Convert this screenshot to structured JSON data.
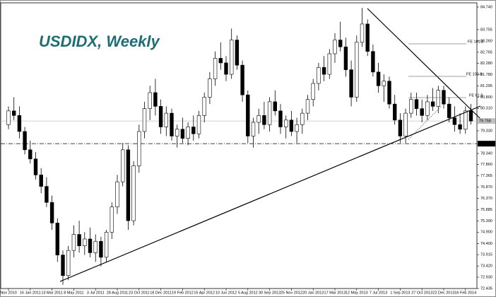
{
  "chart_data": {
    "type": "candlestick",
    "title": "USDIDX, Weekly",
    "categories": [
      "Nov 2010",
      null,
      null,
      null,
      "16 Jan 2011",
      null,
      null,
      null,
      "13 Mar 2011",
      null,
      null,
      null,
      "8 May 2011",
      null,
      null,
      null,
      "3 Jul 2011",
      null,
      null,
      null,
      "28 Aug 2011",
      null,
      null,
      null,
      "23 Oct 2011",
      null,
      null,
      null,
      "18 Dec 2011",
      null,
      null,
      null,
      "19 Feb 2012",
      null,
      null,
      null,
      "15 Apr 2012",
      null,
      null,
      null,
      "10 Jun 2012",
      null,
      null,
      null,
      "5 Aug 2012",
      null,
      null,
      null,
      "30 Sep 2012",
      null,
      null,
      null,
      "25 Nov 2012",
      null,
      null,
      null,
      "20 Jan 2013",
      null,
      null,
      null,
      "17 Mar 2013",
      null,
      null,
      null,
      "12 May 2013",
      null,
      null,
      null,
      "7 Jul 2013",
      null,
      null,
      null,
      "1 Sep 2013",
      null,
      null,
      null,
      "27 Oct 2013",
      null,
      null,
      null,
      "22 Dec 2013",
      null,
      null,
      null,
      "16 Feb 2014",
      null
    ],
    "open": [
      79.6,
      80.2,
      80.0,
      79.3,
      78.5,
      78.1,
      77.4,
      76.9,
      76.2,
      75.3,
      73.9,
      73.0,
      74.1,
      74.8,
      74.3,
      74.6,
      74.0,
      74.5,
      73.8,
      74.9,
      76.0,
      77.1,
      78.5,
      75.4,
      77.8,
      79.3,
      80.3,
      81.0,
      80.4,
      79.5,
      80.1,
      79.1,
      79.4,
      79.0,
      79.5,
      79.2,
      80.0,
      80.8,
      81.6,
      82.5,
      82.3,
      81.8,
      83.3,
      82.2,
      80.9,
      79.1,
      79.7,
      80.0,
      79.6,
      80.6,
      80.2,
      79.5,
      79.8,
      79.3,
      79.6,
      80.1,
      80.7,
      81.4,
      82.1,
      81.8,
      82.7,
      83.3,
      83.0,
      82.0,
      80.8,
      83.2,
      84.0,
      82.8,
      81.9,
      81.3,
      81.5,
      80.5,
      79.8,
      79.1,
      80.1,
      80.7,
      80.3,
      80.0,
      80.6,
      80.4,
      81.1,
      80.5,
      79.9,
      79.6,
      79.4,
      80.2
    ],
    "high": [
      80.4,
      80.8,
      80.4,
      79.5,
      78.9,
      78.4,
      77.7,
      77.3,
      76.5,
      75.5,
      74.1,
      74.3,
      75.2,
      75.4,
      74.9,
      75.1,
      74.8,
      74.7,
      75.0,
      76.2,
      77.4,
      78.8,
      78.7,
      78.0,
      79.6,
      80.6,
      81.3,
      81.6,
      80.7,
      80.4,
      80.3,
      79.6,
      79.9,
      79.7,
      80.0,
      80.2,
      81.0,
      81.9,
      82.8,
      83.2,
      82.6,
      83.8,
      83.5,
      82.4,
      81.1,
      79.9,
      80.3,
      80.6,
      80.8,
      81.1,
      80.5,
      80.0,
      80.2,
      79.9,
      80.3,
      80.9,
      81.6,
      82.3,
      82.6,
      82.9,
      83.6,
      84.1,
      83.4,
      82.4,
      83.5,
      84.7,
      84.2,
      83.1,
      82.3,
      81.8,
      81.7,
      80.9,
      80.1,
      80.3,
      81.0,
      81.0,
      80.7,
      80.9,
      81.2,
      81.3,
      81.3,
      80.8,
      80.4,
      80.1,
      80.4,
      80.5
    ],
    "low": [
      79.4,
      79.8,
      79.0,
      78.3,
      77.9,
      77.2,
      76.6,
      76.0,
      75.0,
      73.6,
      72.6,
      72.8,
      73.8,
      74.0,
      73.9,
      73.8,
      73.6,
      73.4,
      73.6,
      74.6,
      75.7,
      76.9,
      75.0,
      75.2,
      77.5,
      79.0,
      79.8,
      80.0,
      79.2,
      79.1,
      78.9,
      78.6,
      78.8,
      78.7,
      78.9,
      79.0,
      79.7,
      80.5,
      81.3,
      82.0,
      81.5,
      81.6,
      82.0,
      80.6,
      78.8,
      78.6,
      79.2,
      79.4,
      79.3,
      80.0,
      79.2,
      79.0,
      79.1,
      78.8,
      79.2,
      79.8,
      80.4,
      81.1,
      81.5,
      81.6,
      82.3,
      82.8,
      81.7,
      80.4,
      80.6,
      83.0,
      82.6,
      81.7,
      81.0,
      80.6,
      80.3,
      79.6,
      78.8,
      78.8,
      79.9,
      80.0,
      79.7,
      79.8,
      80.2,
      80.1,
      80.3,
      79.7,
      79.3,
      79.2,
      79.2,
      79.6
    ],
    "close": [
      80.2,
      80.0,
      79.3,
      78.5,
      78.1,
      77.4,
      76.9,
      76.2,
      75.3,
      73.9,
      73.0,
      74.1,
      74.8,
      74.3,
      74.6,
      74.0,
      74.5,
      73.8,
      74.9,
      76.0,
      77.1,
      78.5,
      75.4,
      77.8,
      79.3,
      80.3,
      81.0,
      80.4,
      79.5,
      80.1,
      79.1,
      79.4,
      79.0,
      79.5,
      79.2,
      80.0,
      80.8,
      81.6,
      82.5,
      82.3,
      81.8,
      83.3,
      82.2,
      80.9,
      79.1,
      79.7,
      80.0,
      79.6,
      80.6,
      80.2,
      79.5,
      79.8,
      79.3,
      79.6,
      80.1,
      80.7,
      81.4,
      82.1,
      81.8,
      82.7,
      83.3,
      83.0,
      82.0,
      80.8,
      83.2,
      84.0,
      82.8,
      81.9,
      81.3,
      81.5,
      80.5,
      79.8,
      79.1,
      80.1,
      80.7,
      80.3,
      80.0,
      80.6,
      80.4,
      81.1,
      80.5,
      79.9,
      79.6,
      79.4,
      80.2,
      79.758
    ],
    "up_color": "#ffffff",
    "down_color": "#000000",
    "ylim": [
      72.435,
      84.74
    ],
    "yticks": [
      {
        "value": 84.74,
        "label": "84.740"
      },
      83.755,
      {
        "value": 83.26,
        "label": "83.260"
      },
      82.765,
      {
        "value": 82.28,
        "label": "82.280"
      },
      {
        "value": 81.78,
        "label": "81.780"
      },
      81.295,
      {
        "value": 80.8,
        "label": "80.800"
      },
      {
        "value": 80.31,
        "label": "80.310"
      },
      {
        "value": 79.33,
        "label": "79.330"
      },
      {
        "value": 78.34,
        "label": "78.340"
      },
      {
        "value": 77.86,
        "label": "77.860"
      },
      77.365,
      {
        "value": 76.87,
        "label": "76.870"
      },
      {
        "value": 76.37,
        "label": "76.370"
      },
      75.885,
      {
        "value": 75.39,
        "label": "75.390"
      },
      {
        "value": 74.9,
        "label": "74.900"
      },
      {
        "value": 74.4,
        "label": "74.400"
      },
      73.915,
      {
        "value": 73.42,
        "label": "73.420"
      },
      {
        "value": 72.93,
        "label": "72.930"
      },
      72.435
    ],
    "price_lines": [
      {
        "value": 79.758,
        "style": "solid",
        "color": "#c0c0c0"
      },
      {
        "value": 78.768,
        "style": "dashdot",
        "color": "#000000"
      }
    ],
    "annotations": [
      "FE 161.8",
      "FE 100.0",
      "FE 61.8"
    ]
  }
}
